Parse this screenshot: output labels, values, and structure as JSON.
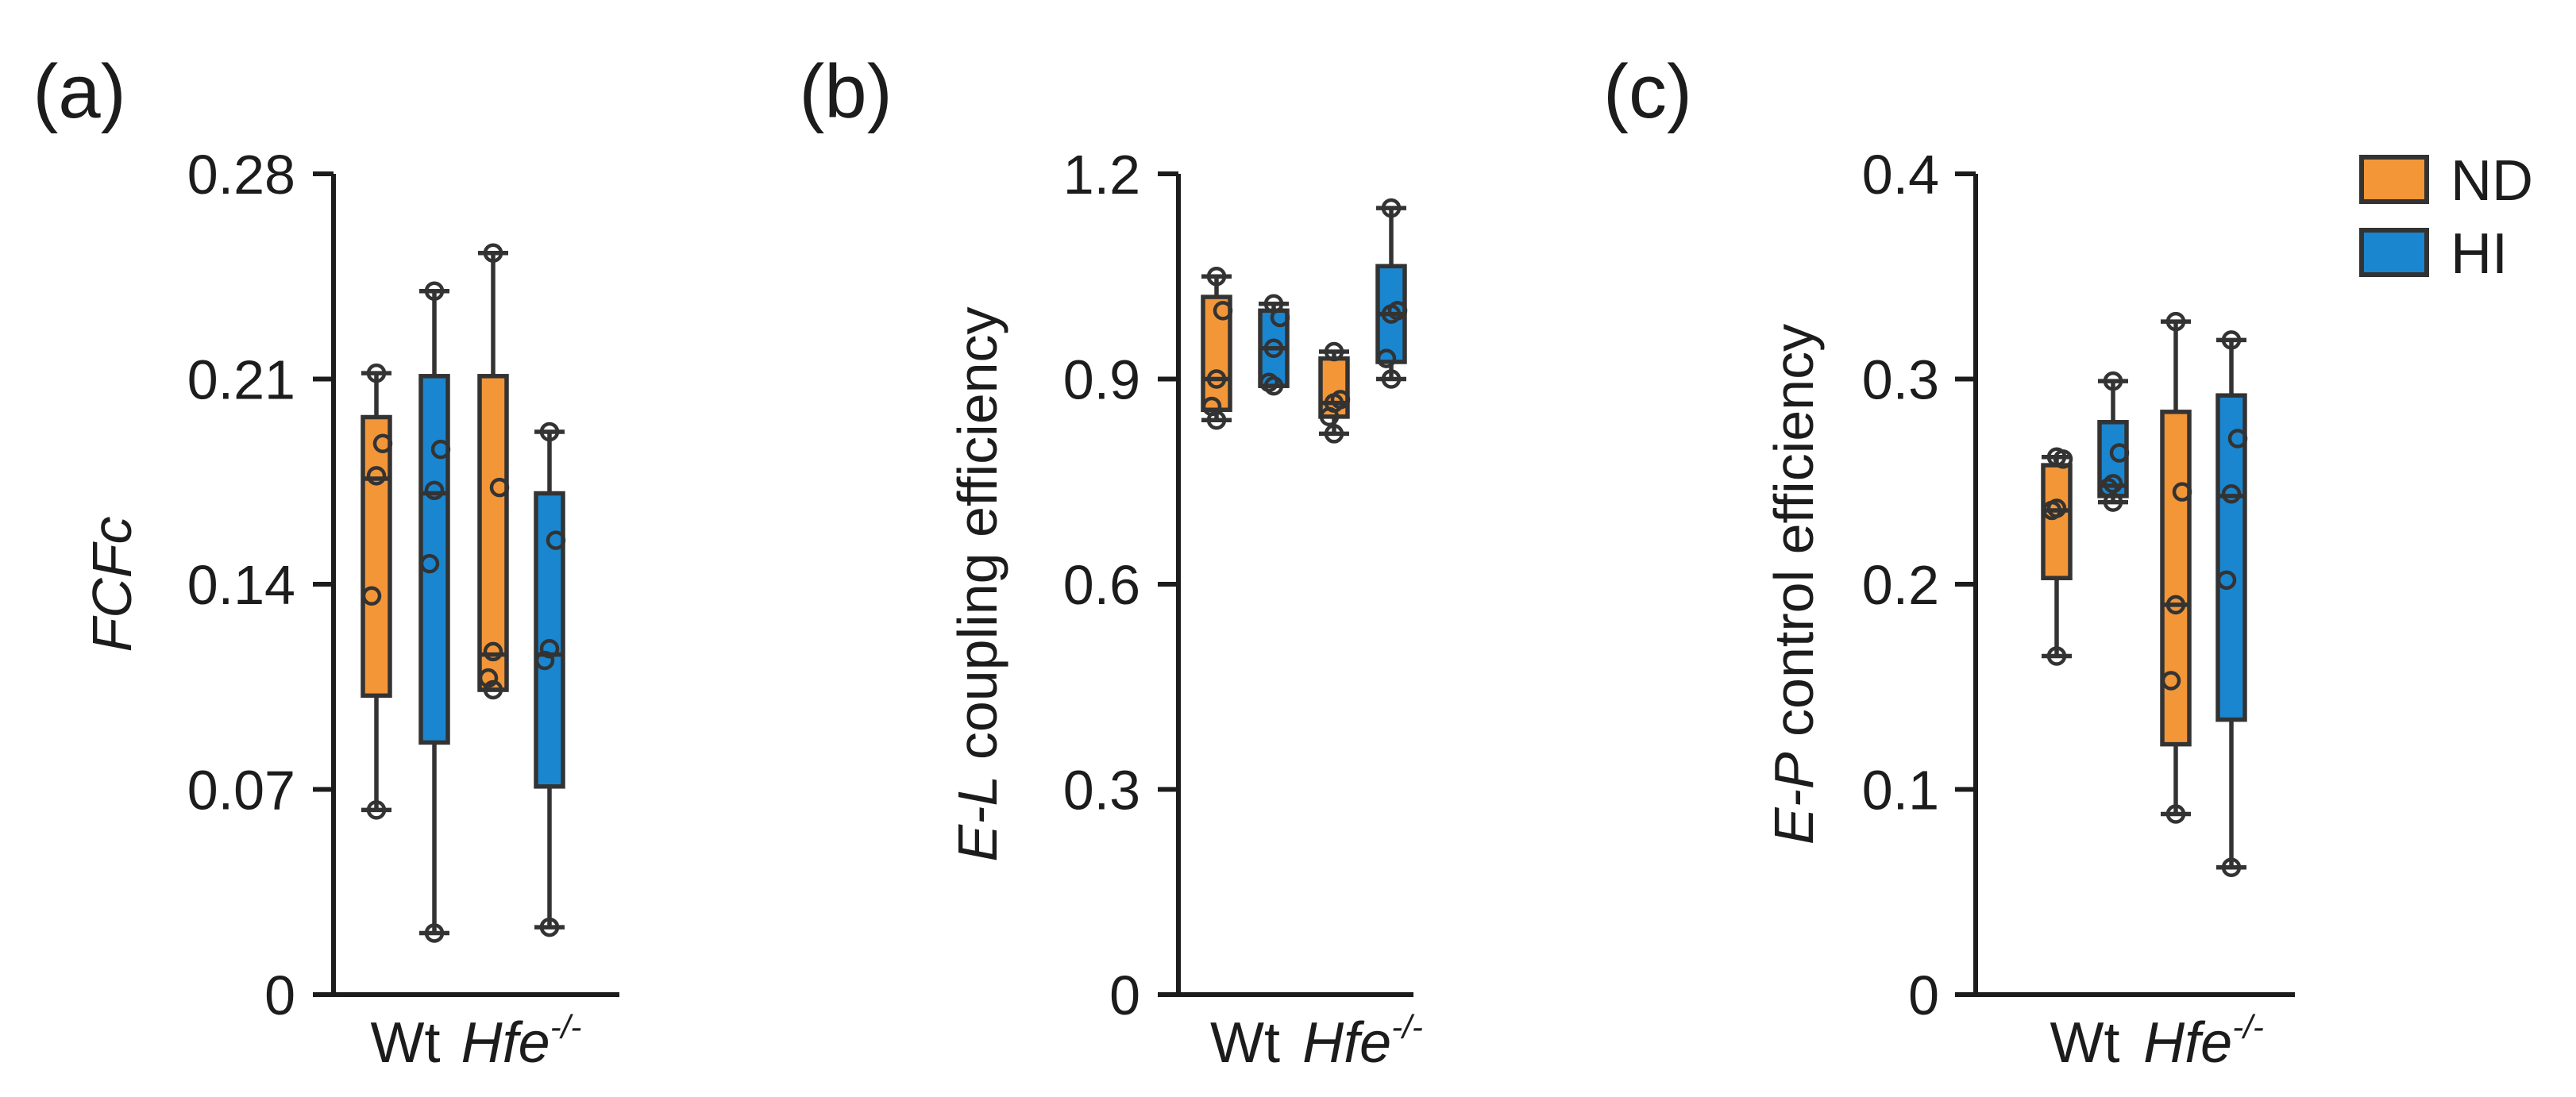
{
  "colors": {
    "ND": "#f39638",
    "HI": "#1a86d0",
    "axis": "#1c1c1c"
  },
  "legend": [
    {
      "label": "ND",
      "color": "#f39638"
    },
    {
      "label": "HI",
      "color": "#1a86d0"
    }
  ],
  "chart_data": [
    {
      "type": "box",
      "panel_label": "(a)",
      "ylabel": "FCFc",
      "ylim": [
        0,
        0.28
      ],
      "yticks": [
        0,
        0.07,
        0.14,
        0.21,
        0.28
      ],
      "ytick_labels": [
        "0",
        "0.07",
        "0.14",
        "0.21",
        "0.28"
      ],
      "categories": [
        {
          "label": "Wt",
          "sup": ""
        },
        {
          "label": "Hfe",
          "sup": "-/-"
        }
      ],
      "groups": [
        {
          "category": "Wt",
          "series": "ND",
          "min": 0.063,
          "q1": 0.102,
          "median": 0.176,
          "q3": 0.197,
          "max": 0.212,
          "points": [
            0.063,
            0.136,
            0.177,
            0.188,
            0.212
          ]
        },
        {
          "category": "Wt",
          "series": "HI",
          "min": 0.021,
          "q1": 0.086,
          "median": 0.171,
          "q3": 0.211,
          "max": 0.24,
          "points": [
            0.021,
            0.147,
            0.172,
            0.186,
            0.24
          ]
        },
        {
          "category": "Hfe",
          "series": "ND",
          "min": 0.104,
          "q1": 0.104,
          "median": 0.116,
          "q3": 0.211,
          "max": 0.253,
          "points": [
            0.104,
            0.108,
            0.117,
            0.173,
            0.253
          ]
        },
        {
          "category": "Hfe",
          "series": "HI",
          "min": 0.023,
          "q1": 0.071,
          "median": 0.116,
          "q3": 0.171,
          "max": 0.192,
          "points": [
            0.023,
            0.114,
            0.118,
            0.155,
            0.192
          ]
        }
      ]
    },
    {
      "type": "box",
      "panel_label": "(b)",
      "ylabel": "E-L coupling efficiency",
      "ylim": [
        0,
        1.2
      ],
      "yticks": [
        0,
        0.3,
        0.6,
        0.9,
        1.2
      ],
      "ytick_labels": [
        "0",
        "0.3",
        "0.6",
        "0.9",
        "1.2"
      ],
      "categories": [
        {
          "label": "Wt",
          "sup": ""
        },
        {
          "label": "Hfe",
          "sup": "-/-"
        }
      ],
      "groups": [
        {
          "category": "Wt",
          "series": "ND",
          "min": 0.84,
          "q1": 0.855,
          "median": 0.9,
          "q3": 1.02,
          "max": 1.05,
          "points": [
            0.84,
            0.86,
            0.9,
            1.0,
            1.05
          ]
        },
        {
          "category": "Wt",
          "series": "HI",
          "min": 0.89,
          "q1": 0.89,
          "median": 0.945,
          "q3": 1.0,
          "max": 1.01,
          "points": [
            0.89,
            0.895,
            0.945,
            0.99,
            1.01
          ]
        },
        {
          "category": "Hfe",
          "series": "ND",
          "min": 0.82,
          "q1": 0.845,
          "median": 0.865,
          "q3": 0.93,
          "max": 0.94,
          "points": [
            0.82,
            0.845,
            0.865,
            0.87,
            0.94
          ]
        },
        {
          "category": "Hfe",
          "series": "HI",
          "min": 0.9,
          "q1": 0.925,
          "median": 0.995,
          "q3": 1.065,
          "max": 1.15,
          "points": [
            0.9,
            0.93,
            0.995,
            1.0,
            1.15
          ]
        }
      ]
    },
    {
      "type": "box",
      "panel_label": "(c)",
      "ylabel": "E-P control efficiency",
      "ylim": [
        0,
        0.4
      ],
      "yticks": [
        0,
        0.1,
        0.2,
        0.3,
        0.4
      ],
      "ytick_labels": [
        "0",
        "0.1",
        "0.2",
        "0.3",
        "0.4"
      ],
      "categories": [
        {
          "label": "Wt",
          "sup": ""
        },
        {
          "label": "Hfe",
          "sup": "-/-"
        }
      ],
      "groups": [
        {
          "category": "Wt",
          "series": "ND",
          "min": 0.165,
          "q1": 0.203,
          "median": 0.236,
          "q3": 0.258,
          "max": 0.262,
          "points": [
            0.165,
            0.236,
            0.237,
            0.261,
            0.262
          ]
        },
        {
          "category": "Wt",
          "series": "HI",
          "min": 0.24,
          "q1": 0.243,
          "median": 0.248,
          "q3": 0.279,
          "max": 0.299,
          "points": [
            0.24,
            0.247,
            0.249,
            0.264,
            0.299
          ]
        },
        {
          "category": "Hfe",
          "series": "ND",
          "min": 0.088,
          "q1": 0.122,
          "median": 0.19,
          "q3": 0.284,
          "max": 0.328,
          "points": [
            0.088,
            0.153,
            0.19,
            0.245,
            0.328
          ]
        },
        {
          "category": "Hfe",
          "series": "HI",
          "min": 0.062,
          "q1": 0.134,
          "median": 0.243,
          "q3": 0.292,
          "max": 0.319,
          "points": [
            0.062,
            0.202,
            0.244,
            0.271,
            0.319
          ]
        }
      ]
    }
  ]
}
